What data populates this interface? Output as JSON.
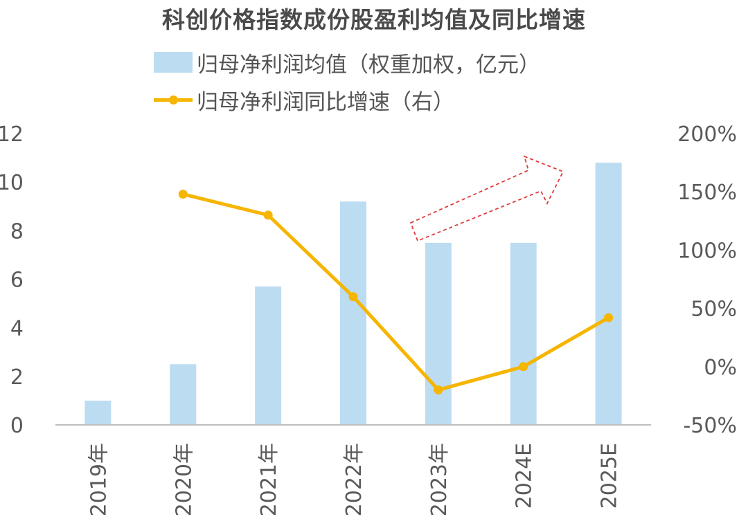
{
  "chart_data": {
    "type": "bar",
    "title": "科创价格指数成份股盈利均值及同比增速",
    "categories": [
      "2019年",
      "2020年",
      "2021年",
      "2022年",
      "2023年",
      "2024E",
      "2025E"
    ],
    "series": [
      {
        "name": "归母净利润均值（权重加权，亿元）",
        "type": "bar",
        "axis": "left",
        "values": [
          1.0,
          2.5,
          5.7,
          9.2,
          7.5,
          7.5,
          10.8
        ]
      },
      {
        "name": "归母净利润同比增速（右）",
        "type": "line",
        "axis": "right",
        "values": [
          null,
          148,
          130,
          60,
          -20,
          0,
          42
        ]
      }
    ],
    "y_left": {
      "ylim": [
        0,
        12
      ],
      "ticks": [
        "0",
        "2",
        "4",
        "6",
        "8",
        "10",
        "12"
      ]
    },
    "y_right": {
      "ylim": [
        -50,
        200
      ],
      "ticks": [
        "-50%",
        "0%",
        "50%",
        "100%",
        "150%",
        "200%"
      ]
    },
    "grid": false,
    "legend": "top",
    "annotation": "dashed-red-upward-arrow",
    "colors": {
      "bar": "#bcdcf2",
      "line": "#f5b500",
      "axis": "#bfbfbf",
      "arrow": "#e03a3a"
    }
  }
}
